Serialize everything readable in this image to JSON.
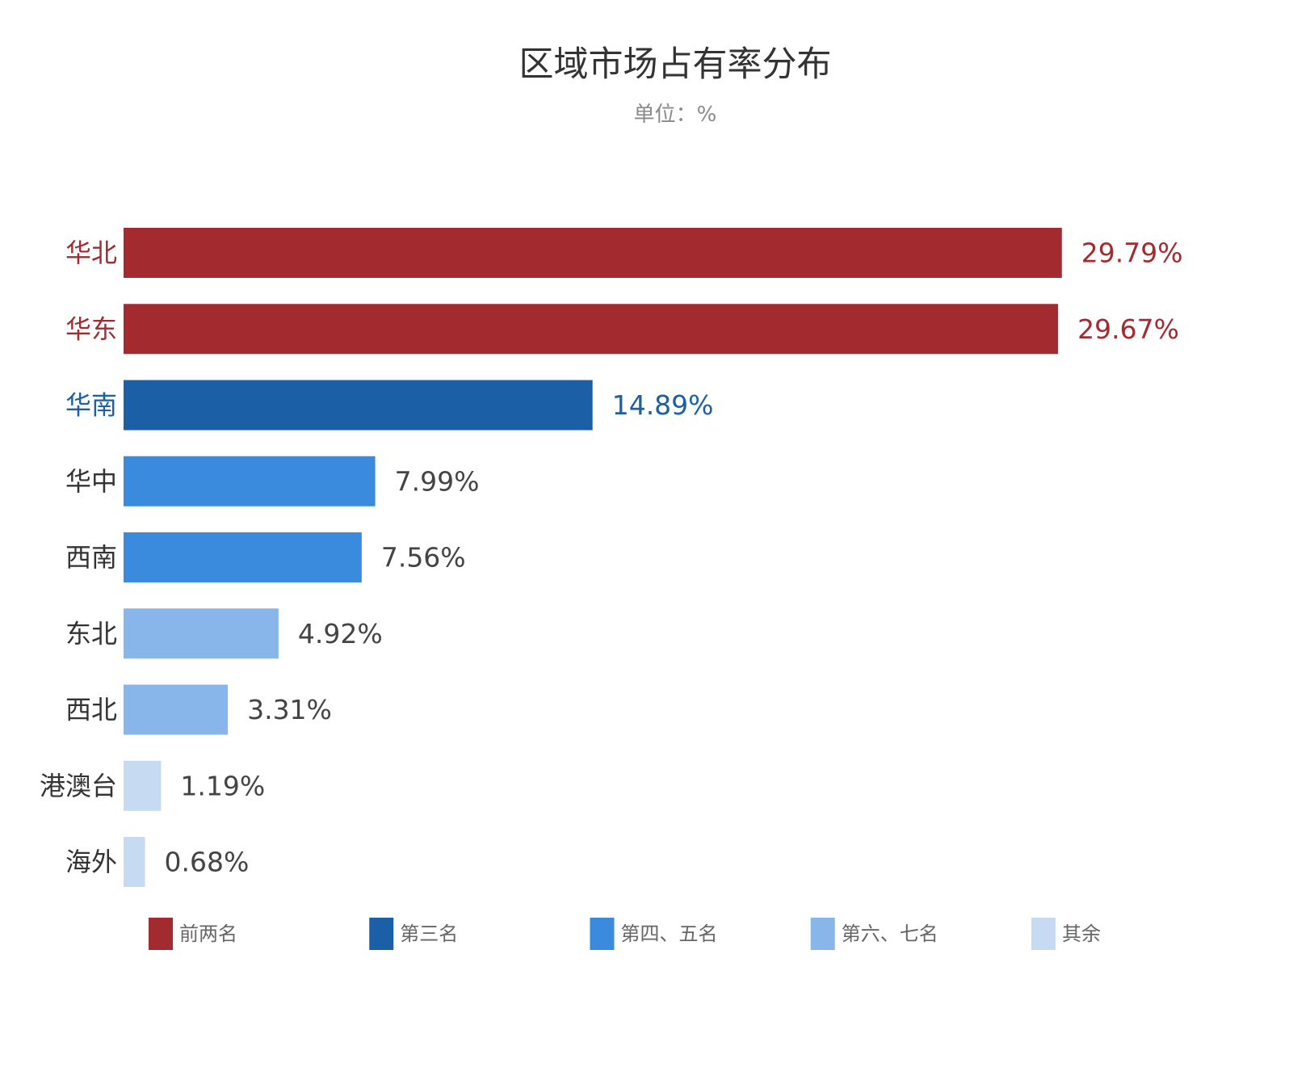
{
  "chart_data": {
    "type": "bar",
    "orientation": "horizontal",
    "title": "区域市场占有率分布",
    "subtitle": "单位：%",
    "categories": [
      "华北",
      "华东",
      "华南",
      "华中",
      "西南",
      "东北",
      "西北",
      "港澳台",
      "海外"
    ],
    "values": [
      29.79,
      29.67,
      14.89,
      7.99,
      7.56,
      4.92,
      3.31,
      1.19,
      0.68
    ],
    "value_labels": [
      "29.79%",
      "29.67%",
      "14.89%",
      "7.99%",
      "7.56%",
      "4.92%",
      "3.31%",
      "1.19%",
      "0.68%"
    ],
    "groups": [
      0,
      0,
      1,
      2,
      2,
      3,
      3,
      4,
      4
    ],
    "legend": [
      {
        "name": "前两名",
        "color": "#A32B2F",
        "text_color": "#A32B2F"
      },
      {
        "name": "第三名",
        "color": "#1B5FA7",
        "text_color": "#1B5FA7"
      },
      {
        "name": "第四、五名",
        "color": "#3A8BDE",
        "text_color": "#333333"
      },
      {
        "name": "第六、七名",
        "color": "#88B6EA",
        "text_color": "#333333"
      },
      {
        "name": "其余",
        "color": "#C6DAF2",
        "text_color": "#333333"
      }
    ],
    "legend_position": "bottom",
    "xlim": [
      0,
      30
    ],
    "grid": false
  }
}
